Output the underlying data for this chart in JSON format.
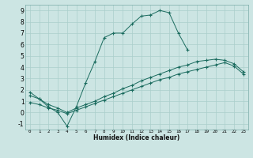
{
  "title": "",
  "xlabel": "Humidex (Indice chaleur)",
  "xlim": [
    -0.5,
    23.5
  ],
  "ylim": [
    -1.5,
    9.5
  ],
  "xticks": [
    0,
    1,
    2,
    3,
    4,
    5,
    6,
    7,
    8,
    9,
    10,
    11,
    12,
    13,
    14,
    15,
    16,
    17,
    18,
    19,
    20,
    21,
    22,
    23
  ],
  "yticks": [
    -1,
    0,
    1,
    2,
    3,
    4,
    5,
    6,
    7,
    8,
    9
  ],
  "bg_color": "#cce5e3",
  "line_color": "#1a6b5e",
  "grid_color": "#aacfcc",
  "line1_x": [
    0,
    1,
    2,
    3,
    4,
    5,
    6,
    7,
    8,
    9,
    10,
    11,
    12,
    13,
    14,
    15,
    16,
    17
  ],
  "line1_y": [
    1.8,
    1.2,
    0.5,
    0.0,
    -1.2,
    0.5,
    2.6,
    4.5,
    6.6,
    7.0,
    7.0,
    7.8,
    8.5,
    8.6,
    9.0,
    8.8,
    7.0,
    5.5
  ],
  "line2_x": [
    0,
    1,
    2,
    3,
    4,
    5,
    6,
    7,
    8,
    9,
    10,
    11,
    12,
    13,
    14,
    15,
    16,
    17,
    18,
    19,
    20,
    21,
    22,
    23
  ],
  "line2_y": [
    1.5,
    1.2,
    0.7,
    0.4,
    0.0,
    0.4,
    0.7,
    1.0,
    1.4,
    1.7,
    2.1,
    2.4,
    2.8,
    3.1,
    3.4,
    3.7,
    4.0,
    4.2,
    4.5,
    4.6,
    4.7,
    4.6,
    4.3,
    3.6
  ],
  "line3_x": [
    0,
    1,
    2,
    3,
    4,
    5,
    6,
    7,
    8,
    9,
    10,
    11,
    12,
    13,
    14,
    15,
    16,
    17,
    18,
    19,
    20,
    21,
    22,
    23
  ],
  "line3_y": [
    0.9,
    0.7,
    0.4,
    0.2,
    -0.1,
    0.2,
    0.5,
    0.8,
    1.1,
    1.4,
    1.7,
    2.0,
    2.3,
    2.6,
    2.9,
    3.1,
    3.4,
    3.6,
    3.8,
    4.0,
    4.2,
    4.4,
    4.1,
    3.4
  ]
}
